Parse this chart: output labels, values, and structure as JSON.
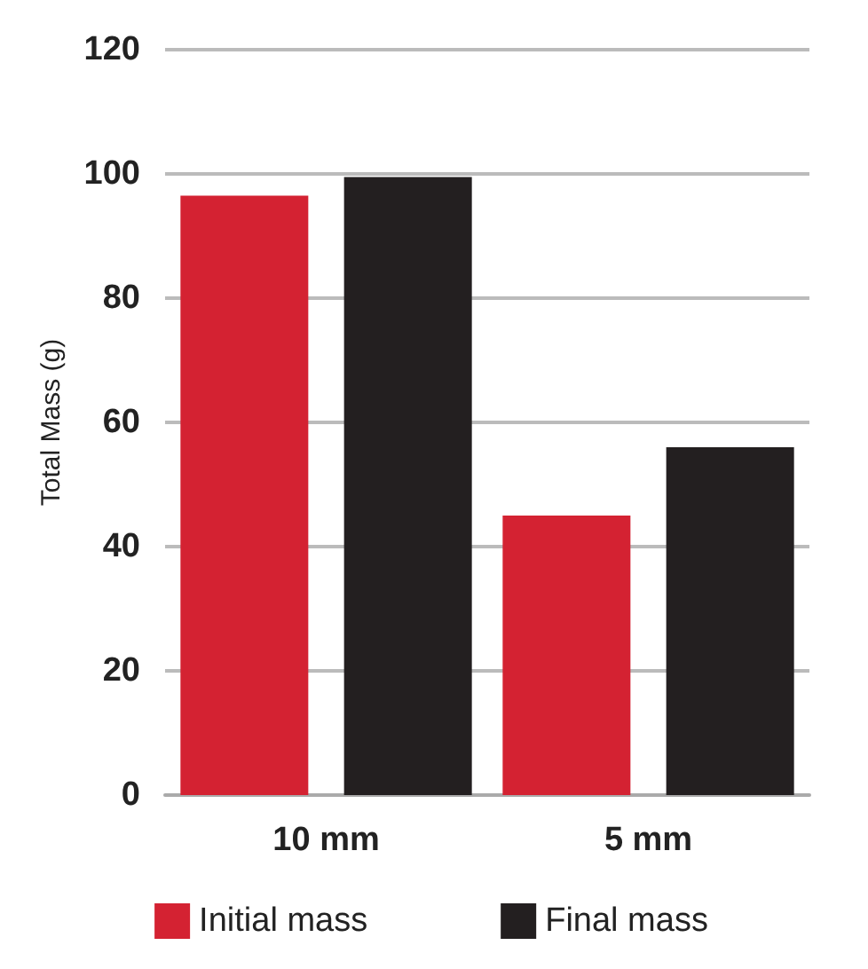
{
  "chart_data": {
    "type": "bar",
    "ylabel": "Total Mass (g)",
    "categories": [
      "10 mm",
      "5 mm"
    ],
    "series": [
      {
        "name": "Initial mass",
        "color": "#d42232",
        "values": [
          96.5,
          45
        ]
      },
      {
        "name": "Final mass",
        "color": "#231f20",
        "values": [
          99.5,
          56
        ]
      }
    ],
    "ylim": [
      0,
      120
    ],
    "yticks": [
      0,
      20,
      40,
      60,
      80,
      100,
      120
    ],
    "grid": "y",
    "legend": "bottom"
  }
}
